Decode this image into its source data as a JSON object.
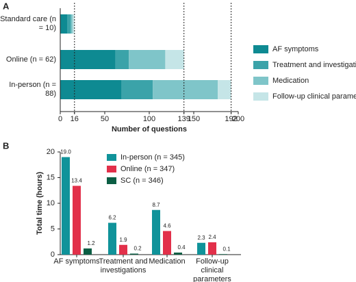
{
  "chart_data": [
    {
      "type": "hbar-stacked",
      "panel_label": "A",
      "categories": [
        "Standard care (n = 10)",
        "Online (n = 62)",
        "In-person (n = 88)"
      ],
      "series": [
        {
          "name": "AF symptoms",
          "color": "#0e8a92",
          "values": [
            8,
            62,
            69
          ]
        },
        {
          "name": "Treatment and investigations",
          "color": "#3ba3a9",
          "values": [
            4,
            15,
            35
          ]
        },
        {
          "name": "Medication",
          "color": "#7fc5c9",
          "values": [
            2,
            41,
            73
          ]
        },
        {
          "name": "Follow-up clinical parameters",
          "color": "#c5e5e7",
          "values": [
            2,
            21,
            15
          ]
        }
      ],
      "xlim": [
        0,
        200
      ],
      "xticks": [
        0,
        16,
        50,
        100,
        139,
        150,
        192,
        200
      ],
      "reference_lines": [
        16,
        139,
        192
      ],
      "xlabel": "Number of questions",
      "legend": "right"
    },
    {
      "type": "bar-grouped",
      "panel_label": "B",
      "categories": [
        "AF symptoms",
        "Treatment and investigations",
        "Medication",
        "Follow-up clinical parameters"
      ],
      "series": [
        {
          "name": "In-person (n = 345)",
          "color": "#10939a",
          "values": [
            19.0,
            6.2,
            8.7,
            2.3
          ],
          "value_labels": [
            "19.0",
            "6.2",
            "8.7",
            "2.3"
          ]
        },
        {
          "name": "Online (n = 347)",
          "color": "#e2304a",
          "values": [
            13.4,
            1.9,
            4.6,
            2.4
          ],
          "value_labels": [
            "13.4",
            "1.9",
            "4.6",
            "2.4"
          ]
        },
        {
          "name": "SC (n = 346)",
          "color": "#0b5e44",
          "values": [
            1.2,
            0.2,
            0.4,
            0.1
          ],
          "value_labels": [
            "1.2",
            "0.2",
            "0.4",
            "0.1"
          ]
        }
      ],
      "ylim": [
        0,
        20
      ],
      "yticks": [
        0,
        5,
        10,
        15,
        20
      ],
      "ylabel": "Total time (hours)",
      "legend": "top"
    }
  ]
}
